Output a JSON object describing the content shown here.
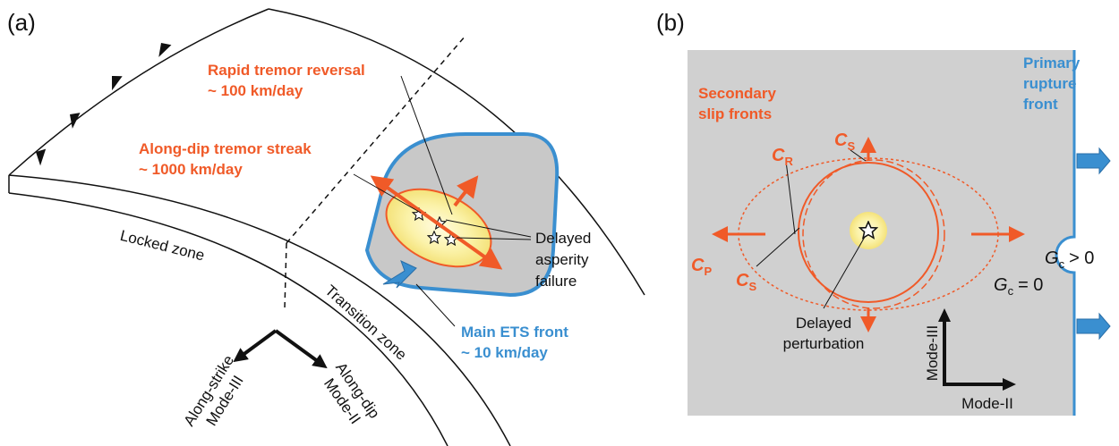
{
  "panel_a": {
    "label": "(a)",
    "rapid_reversal": {
      "title": "Rapid tremor reversal",
      "speed": "~ 100 km/day"
    },
    "tremor_streak": {
      "title": "Along-dip tremor streak",
      "speed": "~ 1000 km/day"
    },
    "asperity": [
      "Delayed",
      "asperity",
      "failure"
    ],
    "locked_zone": "Locked zone",
    "transition_zone": "Transition zone",
    "ets_front": {
      "title": "Main ETS front",
      "speed": "~ 10 km/day"
    },
    "along_strike": [
      "Along-strike",
      "Mode-III"
    ],
    "along_dip": [
      "Along-dip",
      "Mode-II"
    ]
  },
  "panel_b": {
    "label": "(b)",
    "secondary": [
      "Secondary",
      "slip fronts"
    ],
    "primary": [
      "Primary",
      "rupture",
      "front"
    ],
    "cs_top": {
      "symbol": "C",
      "subscript": "S"
    },
    "cr": {
      "symbol": "C",
      "subscript": "R"
    },
    "cp": {
      "symbol": "C",
      "subscript": "P"
    },
    "cs_bottom": {
      "symbol": "C",
      "subscript": "S"
    },
    "gc_positive": {
      "symbol": "G",
      "subscript": "c",
      "relation": "> 0"
    },
    "gc_zero": {
      "symbol": "G",
      "subscript": "c",
      "relation": "= 0"
    },
    "perturbation": [
      "Delayed",
      "perturbation"
    ],
    "mode_iii": "Mode-III",
    "mode_ii": "Mode-II"
  }
}
